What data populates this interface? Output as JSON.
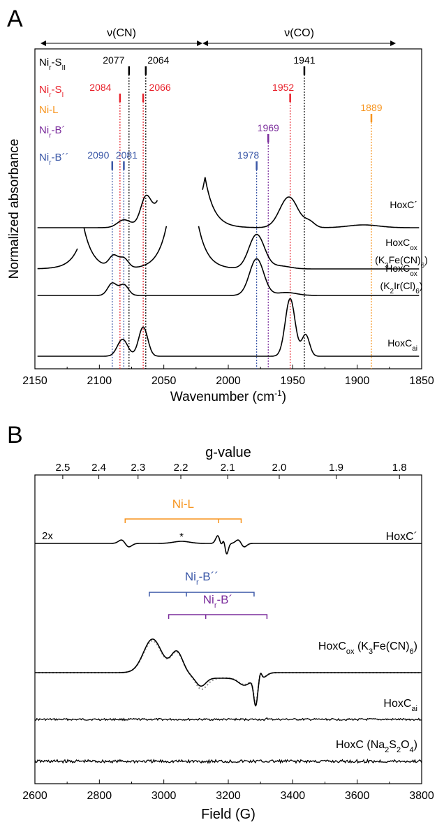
{
  "colors": {
    "black": "#000000",
    "red": "#e8202a",
    "orange": "#f7941d",
    "purple": "#7b2d9c",
    "blue": "#3a57a7",
    "gray": "#999999"
  },
  "chart_data": [
    {
      "panel": "A",
      "type": "line",
      "xlabel": "Wavenumber (cm⁻¹)",
      "xlabel_parts": [
        "Wavenumber (cm",
        "-1",
        ")"
      ],
      "ylabel": "Normalized absorbance",
      "xlim": [
        2150,
        1850
      ],
      "xticks": [
        "2150",
        "2100",
        "2050",
        "2000",
        "1950",
        "1900",
        "1850"
      ],
      "regions": [
        {
          "label": "ν(CN)",
          "range": [
            2150,
            2020
          ]
        },
        {
          "label": "ν(CO)",
          "range": [
            2020,
            1870
          ]
        }
      ],
      "species": [
        {
          "name": "Niᵣ-Sᴵᴵ",
          "parts": [
            "Ni",
            "r",
            "-S",
            "II"
          ],
          "color": "black",
          "peaks": [
            2077,
            2064,
            1941
          ],
          "labels": [
            "2077",
            "2064",
            "1941"
          ]
        },
        {
          "name": "Niᵣ-Sᴵ",
          "parts": [
            "Ni",
            "r",
            "-S",
            "I"
          ],
          "color": "red",
          "peaks": [
            2084,
            2066,
            1952
          ],
          "labels": [
            "2084",
            "2066",
            "1952"
          ]
        },
        {
          "name": "Ni-L",
          "parts": [
            "Ni-L",
            "",
            "",
            ""
          ],
          "color": "orange",
          "peaks": [
            1889
          ],
          "labels": [
            "1889"
          ]
        },
        {
          "name": "Niᵣ-B´",
          "parts": [
            "Ni",
            "r",
            "-B´",
            ""
          ],
          "color": "purple",
          "peaks": [
            1969
          ],
          "labels": [
            "1969"
          ]
        },
        {
          "name": "Niᵣ-B´´",
          "parts": [
            "Ni",
            "r",
            "-B´´",
            ""
          ],
          "color": "blue",
          "peaks": [
            2090,
            2081,
            1978
          ],
          "labels": [
            "2090",
            "2081",
            "1978"
          ]
        }
      ],
      "series": [
        {
          "name": "HoxC´",
          "parts": [
            "HoxC´",
            "",
            ""
          ],
          "baseline": 0.0,
          "peaks": [
            [
              2081,
              0.13,
              5
            ],
            [
              2064,
              0.45,
              4
            ],
            [
              1953,
              0.55,
              7
            ],
            [
              1937,
              0.1,
              4
            ],
            [
              1895,
              0.05,
              12
            ]
          ],
          "wall_left": [
            2018,
            0.9
          ],
          "wall_right": [
            2055,
            0.45
          ],
          "gap": [
            2055,
            2020
          ]
        },
        {
          "name": "HoxCₒₓ (K₃Fe(CN)₆)",
          "parts": [
            "HoxC",
            "ox",
            ""
          ],
          "parts2": [
            "(K",
            "3",
            "Fe(CN)",
            "6",
            ")"
          ],
          "baseline": 0.0,
          "peaks": [
            [
              2089,
              0.24,
              3.5
            ],
            [
              2081,
              0.2,
              3.5
            ],
            [
              1978,
              0.7,
              6
            ],
            [
              1960,
              0.06,
              8
            ]
          ],
          "wall_left": [
            2112,
            0.85
          ],
          "wall_right": [
            2048,
            0.85
          ],
          "wall_left2": [
            2023,
            0.85
          ],
          "gap": [
            2117,
            2112
          ],
          "gap2": [
            2048,
            2023
          ]
        },
        {
          "name": "HoxCₒₓ (K₂Ir(Cl)₆)",
          "parts": [
            "HoxC",
            "ox",
            ""
          ],
          "parts2": [
            "(K",
            "2",
            "Ir(Cl)",
            "6",
            ")"
          ],
          "baseline": 0.0,
          "peaks": [
            [
              2090,
              0.25,
              3.5
            ],
            [
              2081,
              0.22,
              3.5
            ],
            [
              1978,
              0.75,
              5.5
            ],
            [
              1955,
              0.06,
              8
            ]
          ]
        },
        {
          "name": "HoxCₐᵢ",
          "parts": [
            "HoxC",
            "ai",
            ""
          ],
          "baseline": 0.0,
          "peaks": [
            [
              2082,
              0.22,
              4
            ],
            [
              2066,
              0.38,
              3.5
            ],
            [
              1952,
              0.75,
              3.8
            ],
            [
              1940,
              0.28,
              3
            ]
          ]
        }
      ]
    },
    {
      "panel": "B",
      "type": "line",
      "xlabel": "Field (G)",
      "x2label": "g-value",
      "xlim": [
        2600,
        3800
      ],
      "xticks": [
        "2600",
        "2800",
        "3000",
        "3200",
        "3400",
        "3600",
        "3800"
      ],
      "gticks": [
        {
          "g": 2.5,
          "label": "2.5"
        },
        {
          "g": 2.4,
          "label": "2.4"
        },
        {
          "g": 2.3,
          "label": "2.3"
        },
        {
          "g": 2.2,
          "label": "2.2"
        },
        {
          "g": 2.1,
          "label": "2.1"
        },
        {
          "g": 2.0,
          "label": "2.0"
        },
        {
          "g": 1.9,
          "label": "1.9"
        },
        {
          "g": 1.8,
          "label": "1.8"
        }
      ],
      "scale_note": "2x",
      "annotation": "*",
      "brackets": [
        {
          "name": "Ni-L",
          "parts": [
            "Ni-L",
            "",
            ""
          ],
          "color": "orange",
          "range": [
            2880,
            3240
          ],
          "mid": 3170
        },
        {
          "name": "Niᵣ-B´´",
          "parts": [
            "Ni",
            "r",
            "-B´´"
          ],
          "color": "blue",
          "range": [
            2955,
            3280
          ],
          "mid": 3070
        },
        {
          "name": "Niᵣ-B´",
          "parts": [
            "Ni",
            "r",
            "-B´"
          ],
          "color": "purple",
          "range": [
            3015,
            3320
          ],
          "mid": 3130
        }
      ],
      "series": [
        {
          "name": "HoxC´",
          "parts": [
            "HoxC´",
            "",
            ""
          ]
        },
        {
          "name": "HoxCₒₓ (K₃Fe(CN)₆)",
          "parts": [
            "HoxC",
            "ox",
            " (K",
            "3",
            "Fe(CN)",
            "6",
            ")"
          ]
        },
        {
          "name": "HoxCₐᵢ",
          "parts": [
            "HoxC",
            "ai",
            ""
          ]
        },
        {
          "name": "HoxC (Na₂S₂O₄)",
          "parts": [
            "HoxC (Na",
            "2",
            "S",
            "2",
            "O",
            "4",
            ")"
          ]
        }
      ]
    }
  ]
}
